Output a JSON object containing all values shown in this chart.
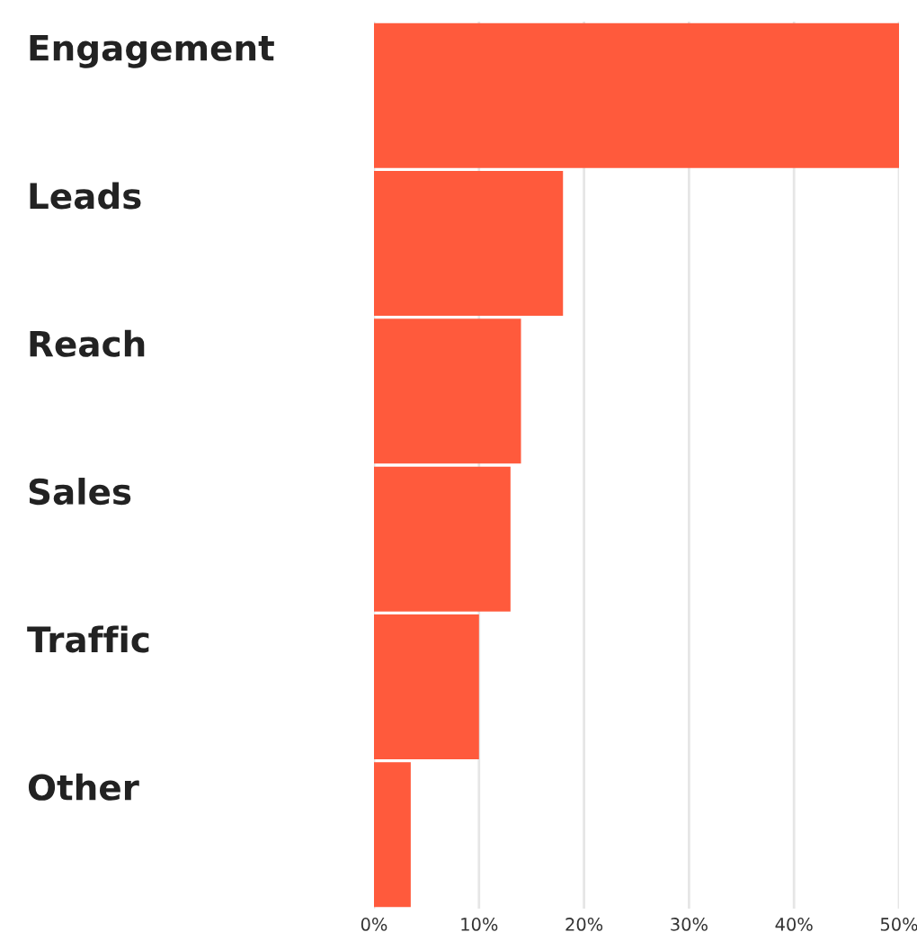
{
  "chart_data": {
    "type": "bar",
    "orientation": "horizontal",
    "categories": [
      "Engagement",
      "Leads",
      "Reach",
      "Sales",
      "Traffic",
      "Other"
    ],
    "values": [
      50,
      18,
      14,
      13,
      10,
      3.5
    ],
    "color": "#ff5a3c",
    "xlim": [
      0,
      50
    ],
    "xticks": [
      {
        "value": 0,
        "label": "0%"
      },
      {
        "value": 10,
        "label": "10%"
      },
      {
        "value": 20,
        "label": "20%"
      },
      {
        "value": 30,
        "label": "30%"
      },
      {
        "value": 40,
        "label": "40%"
      },
      {
        "value": 50,
        "label": "50%"
      }
    ],
    "grid": "x"
  }
}
